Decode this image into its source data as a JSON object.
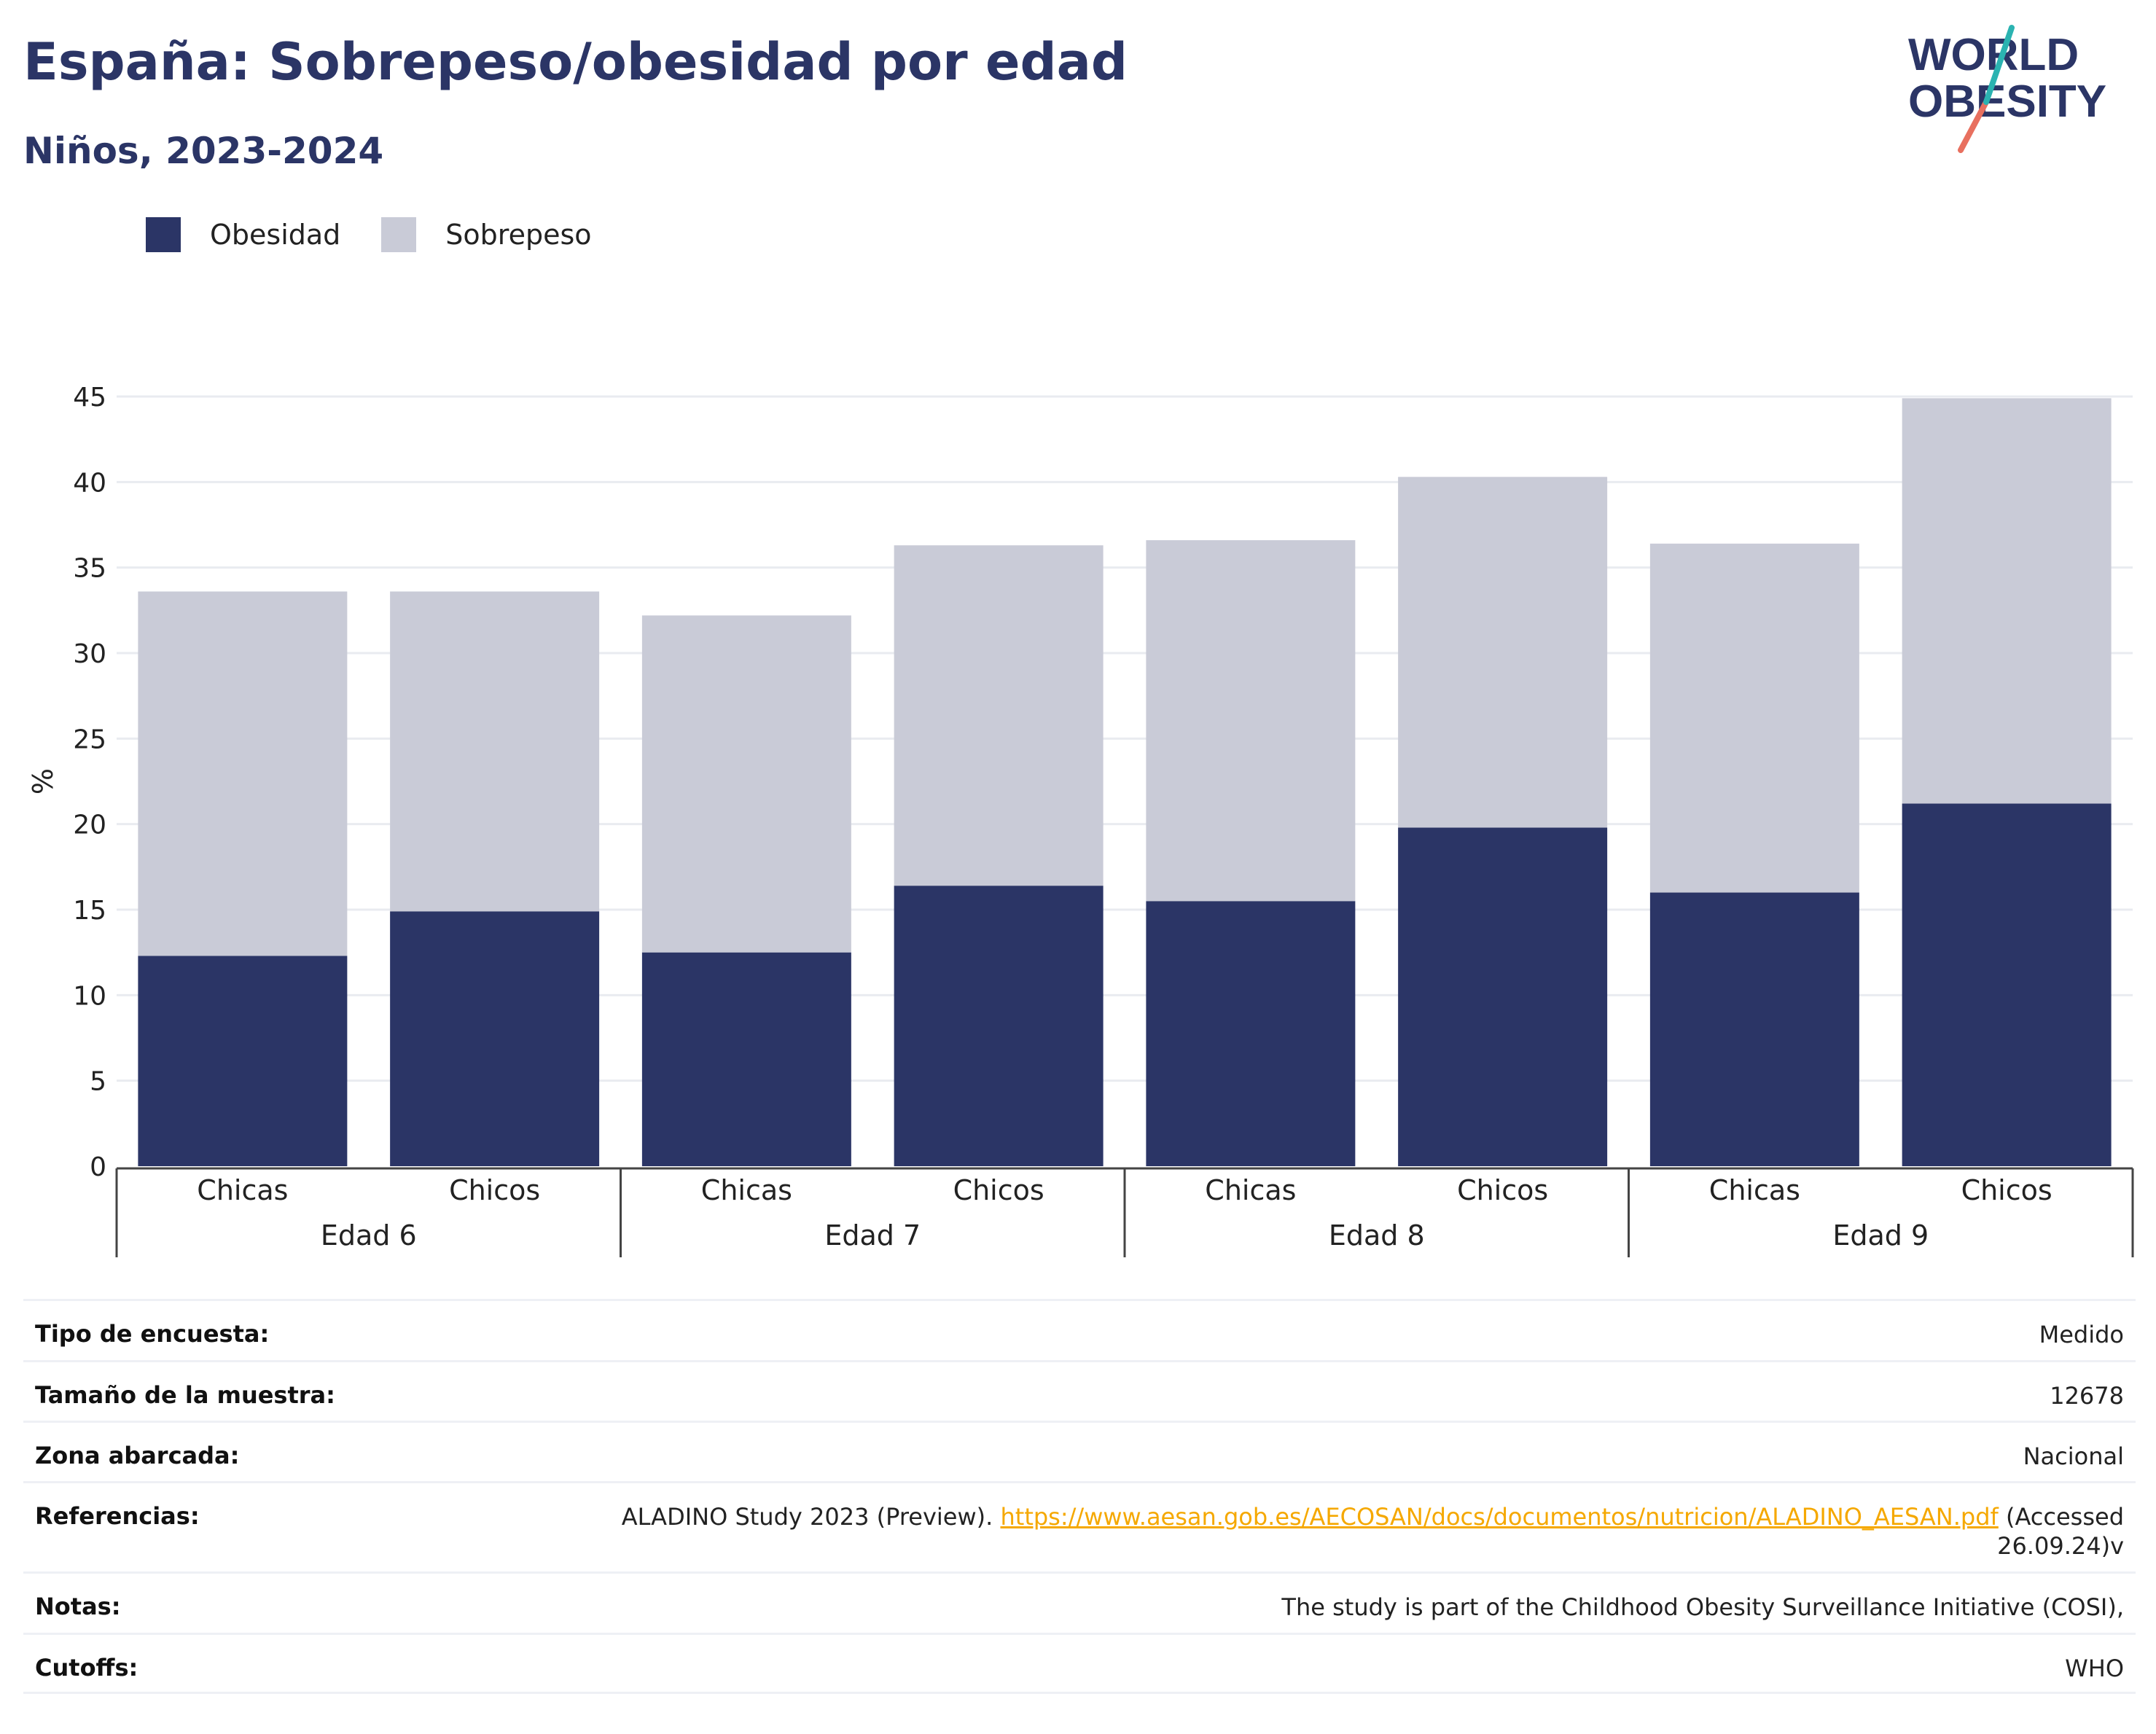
{
  "header": {
    "title": "España: Sobrepeso/obesidad por edad",
    "subtitle": "Niños, 2023-2024"
  },
  "logo": {
    "line1": "WORLD",
    "line2": "OBESITY"
  },
  "legend": {
    "items": [
      {
        "label": "Obesidad",
        "color": "#2b3566"
      },
      {
        "label": "Sobrepeso",
        "color": "#c9cbd7"
      }
    ]
  },
  "chart_data": {
    "type": "bar",
    "stacked": true,
    "ylabel": "%",
    "ylim": [
      0,
      45
    ],
    "yticks": [
      0,
      5,
      10,
      15,
      20,
      25,
      30,
      35,
      40,
      45
    ],
    "grid": true,
    "legend_position": "top-left",
    "groups": [
      "Edad 6",
      "Edad 7",
      "Edad 8",
      "Edad 9"
    ],
    "categories": [
      "Chicas",
      "Chicos",
      "Chicas",
      "Chicos",
      "Chicas",
      "Chicos",
      "Chicas",
      "Chicos"
    ],
    "series": [
      {
        "name": "Obesidad",
        "color": "#2b3566",
        "values": [
          12.3,
          14.9,
          12.5,
          16.4,
          15.5,
          19.8,
          16.0,
          21.2
        ]
      },
      {
        "name": "Sobrepeso",
        "color": "#c9cbd7",
        "values": [
          21.3,
          18.7,
          19.7,
          19.9,
          21.1,
          20.5,
          20.4,
          23.7
        ]
      }
    ]
  },
  "meta": {
    "rows": [
      {
        "label": "Tipo de encuesta:",
        "value": "Medido"
      },
      {
        "label": "Tamaño de la muestra:",
        "value": "12678"
      },
      {
        "label": "Zona abarcada:",
        "value": "Nacional"
      },
      {
        "label": "Referencias:",
        "value_pre": "ALADINO Study 2023 (Preview). ",
        "link": "https://www.aesan.gob.es/AECOSAN/docs/documentos/nutricion/ALADINO_AESAN.pdf",
        "value_post": " (Accessed 26.09.24)v"
      },
      {
        "label": "Notas:",
        "value": "The study is part of the Childhood Obesity Surveillance Initiative (COSI),"
      },
      {
        "label": "Cutoffs:",
        "value": "WHO"
      }
    ]
  }
}
